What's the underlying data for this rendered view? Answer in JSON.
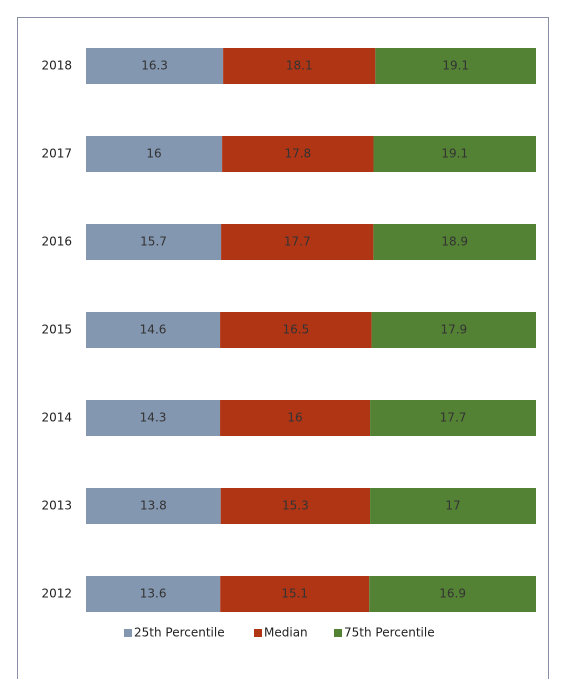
{
  "chart_data": {
    "type": "stacked_bar_100",
    "categories": [
      "2018",
      "2017",
      "2016",
      "2015",
      "2014",
      "2013",
      "2012"
    ],
    "series": [
      {
        "name": "25th Percentile",
        "color": "#8497b0",
        "values": [
          16.3,
          16,
          15.7,
          14.6,
          14.3,
          13.8,
          13.6
        ]
      },
      {
        "name": "Median",
        "color": "#b03515",
        "values": [
          18.1,
          17.8,
          17.7,
          16.5,
          16,
          15.3,
          15.1
        ]
      },
      {
        "name": "75th Percentile",
        "color": "#548235",
        "values": [
          19.1,
          19.1,
          18.9,
          17.9,
          17.7,
          17,
          16.9
        ]
      }
    ],
    "legend": "bottom"
  }
}
